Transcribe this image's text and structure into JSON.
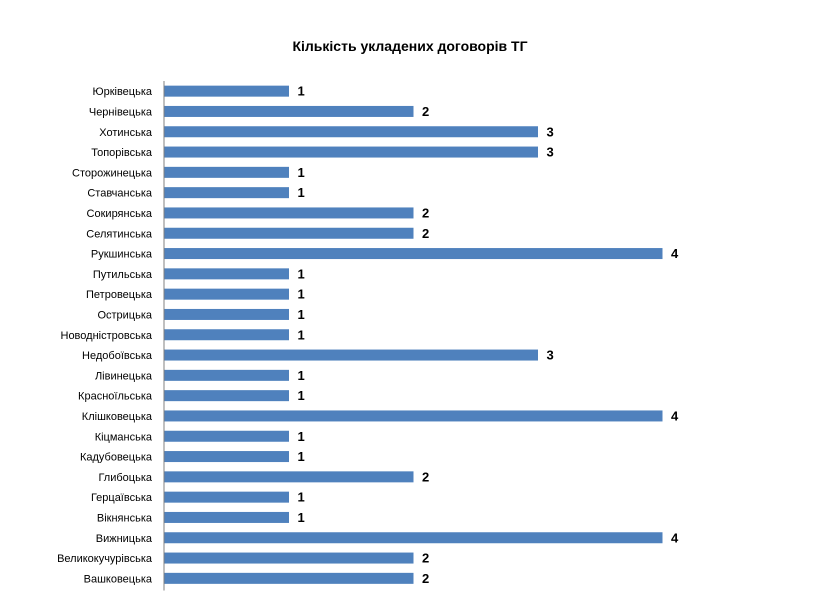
{
  "chart_data": {
    "type": "bar",
    "orientation": "horizontal",
    "title": "Кількість укладених договорів  ТГ",
    "categories": [
      "Юрківецька",
      "Чернівецька",
      "Хотинська",
      "Топорівська",
      "Сторожинецька",
      "Ставчанська",
      "Сокирянська",
      "Селятинська",
      "Рукшинська",
      "Путильська",
      "Петровецька",
      "Острицька",
      "Новодністровська",
      "Недобоївська",
      "Лівинецька",
      "Красноїльська",
      "Клішковецька",
      "Кіцманська",
      "Кадубовецька",
      "Глибоцька",
      "Герцаївська",
      "Вікнянська",
      "Вижницька",
      "Великокучурівська",
      "Вашковецька"
    ],
    "values": [
      1,
      2,
      3,
      3,
      1,
      1,
      2,
      2,
      4,
      1,
      1,
      1,
      1,
      3,
      1,
      1,
      4,
      1,
      1,
      2,
      1,
      1,
      4,
      2,
      2
    ],
    "xlim": [
      0,
      4
    ],
    "grid": false,
    "legend": "none",
    "bar_color": "#4f81bd",
    "xlabel": "",
    "ylabel": ""
  }
}
